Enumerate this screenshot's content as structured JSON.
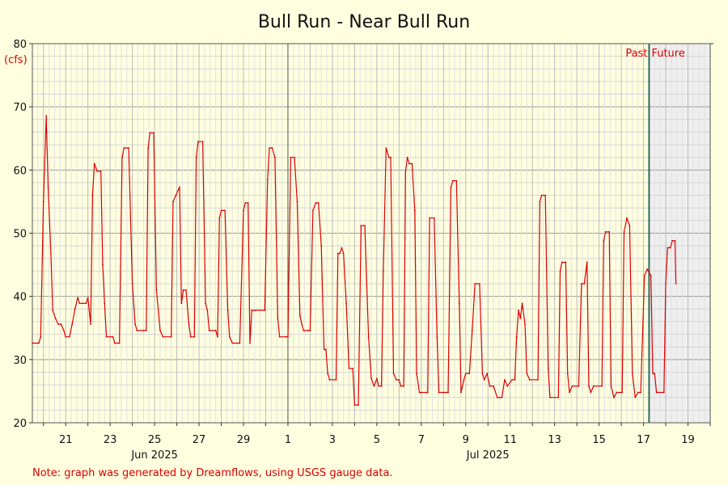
{
  "chart_data": {
    "type": "line",
    "title": "Bull Run - Near Bull Run",
    "y_unit": "(cfs)",
    "ylim": [
      20,
      80
    ],
    "y_ticks": [
      20,
      30,
      40,
      50,
      60,
      70,
      80
    ],
    "x_range": [
      "2025-06-19T12:00",
      "2025-07-20T00:00"
    ],
    "x_tick_labels": [
      {
        "date": "2025-06-21",
        "label": "21"
      },
      {
        "date": "2025-06-23",
        "label": "23"
      },
      {
        "date": "2025-06-25",
        "label": "25"
      },
      {
        "date": "2025-06-27",
        "label": "27"
      },
      {
        "date": "2025-06-29",
        "label": "29"
      },
      {
        "date": "2025-07-01",
        "label": "1"
      },
      {
        "date": "2025-07-03",
        "label": "3"
      },
      {
        "date": "2025-07-05",
        "label": "5"
      },
      {
        "date": "2025-07-07",
        "label": "7"
      },
      {
        "date": "2025-07-09",
        "label": "9"
      },
      {
        "date": "2025-07-11",
        "label": "11"
      },
      {
        "date": "2025-07-13",
        "label": "13"
      },
      {
        "date": "2025-07-15",
        "label": "15"
      },
      {
        "date": "2025-07-17",
        "label": "17"
      },
      {
        "date": "2025-07-19",
        "label": "19"
      }
    ],
    "month_labels": [
      {
        "date": "2025-06-25",
        "label": "Jun 2025"
      },
      {
        "date": "2025-07-10",
        "label": "Jul 2025"
      }
    ],
    "month_boundaries": [
      "2025-07-01"
    ],
    "now": "2025-07-17T06:00",
    "past_label": "Past",
    "future_label": "Future",
    "note": "Note: graph was generated by Dreamflows, using USGS gauge data.",
    "grid": true,
    "line_color": "#dd0000",
    "series": [
      {
        "values": [
          [
            "2025-06-19T12:00",
            32.6
          ],
          [
            "2025-06-19T19:00",
            32.6
          ],
          [
            "2025-06-19T21:00",
            33.6
          ],
          [
            "2025-06-20T00:00",
            55
          ],
          [
            "2025-06-20T03:00",
            68.6
          ],
          [
            "2025-06-20T05:00",
            57.3
          ],
          [
            "2025-06-20T08:00",
            46.8
          ],
          [
            "2025-06-20T10:00",
            37.8
          ],
          [
            "2025-06-20T13:00",
            36.5
          ],
          [
            "2025-06-20T16:00",
            35.6
          ],
          [
            "2025-06-20T19:00",
            35.6
          ],
          [
            "2025-06-20T22:00",
            34.6
          ],
          [
            "2025-06-21T00:00",
            33.6
          ],
          [
            "2025-06-21T04:00",
            33.6
          ],
          [
            "2025-06-21T07:00",
            35.6
          ],
          [
            "2025-06-21T10:00",
            38
          ],
          [
            "2025-06-21T13:00",
            39.8
          ],
          [
            "2025-06-21T15:00",
            38.9
          ],
          [
            "2025-06-21T19:00",
            38.9
          ],
          [
            "2025-06-21T22:00",
            38.9
          ],
          [
            "2025-06-22T00:00",
            39.8
          ],
          [
            "2025-06-22T03:00",
            35.6
          ],
          [
            "2025-06-22T05:00",
            56
          ],
          [
            "2025-06-22T07:00",
            61
          ],
          [
            "2025-06-22T10:00",
            59.8
          ],
          [
            "2025-06-22T14:00",
            59.8
          ],
          [
            "2025-06-22T16:00",
            45
          ],
          [
            "2025-06-22T18:00",
            38.9
          ],
          [
            "2025-06-22T20:00",
            33.6
          ],
          [
            "2025-06-23T00:00",
            33.6
          ],
          [
            "2025-06-23T03:00",
            33.6
          ],
          [
            "2025-06-23T05:00",
            32.6
          ],
          [
            "2025-06-23T10:00",
            32.6
          ],
          [
            "2025-06-23T13:00",
            62
          ],
          [
            "2025-06-23T15:00",
            63.5
          ],
          [
            "2025-06-23T20:00",
            63.5
          ],
          [
            "2025-06-24T00:00",
            42
          ],
          [
            "2025-06-24T03:00",
            35.6
          ],
          [
            "2025-06-24T05:00",
            34.6
          ],
          [
            "2025-06-24T12:00",
            34.6
          ],
          [
            "2025-06-24T15:00",
            34.6
          ],
          [
            "2025-06-24T17:00",
            63.5
          ],
          [
            "2025-06-24T19:00",
            65.9
          ],
          [
            "2025-06-24T23:00",
            65.9
          ],
          [
            "2025-06-25T02:00",
            41
          ],
          [
            "2025-06-25T06:00",
            34.6
          ],
          [
            "2025-06-25T09:00",
            33.6
          ],
          [
            "2025-06-25T18:00",
            33.6
          ],
          [
            "2025-06-25T20:00",
            55
          ],
          [
            "2025-06-25T23:00",
            56
          ],
          [
            "2025-06-26T03:00",
            57.3
          ],
          [
            "2025-06-26T05:00",
            38.9
          ],
          [
            "2025-06-26T07:00",
            41
          ],
          [
            "2025-06-26T10:00",
            41
          ],
          [
            "2025-06-26T13:00",
            35.6
          ],
          [
            "2025-06-26T15:00",
            33.6
          ],
          [
            "2025-06-26T19:00",
            33.6
          ],
          [
            "2025-06-26T21:00",
            62
          ],
          [
            "2025-06-26T23:00",
            64.5
          ],
          [
            "2025-06-27T04:00",
            64.5
          ],
          [
            "2025-06-27T07:00",
            38.9
          ],
          [
            "2025-06-27T09:00",
            37.8
          ],
          [
            "2025-06-27T11:00",
            34.6
          ],
          [
            "2025-06-27T18:00",
            34.6
          ],
          [
            "2025-06-27T20:00",
            33.6
          ],
          [
            "2025-06-27T22:00",
            52.4
          ],
          [
            "2025-06-28T00:00",
            53.6
          ],
          [
            "2025-06-28T04:00",
            53.6
          ],
          [
            "2025-06-28T07:00",
            37.8
          ],
          [
            "2025-06-28T09:00",
            33.6
          ],
          [
            "2025-06-28T12:00",
            32.6
          ],
          [
            "2025-06-28T20:00",
            32.6
          ],
          [
            "2025-06-29T00:00",
            53.6
          ],
          [
            "2025-06-29T02:00",
            54.8
          ],
          [
            "2025-06-29T05:00",
            54.8
          ],
          [
            "2025-06-29T07:00",
            32.6
          ],
          [
            "2025-06-29T09:00",
            37.8
          ],
          [
            "2025-06-29T12:00",
            37.8
          ],
          [
            "2025-06-29T20:00",
            37.8
          ],
          [
            "2025-06-29T23:00",
            37.8
          ],
          [
            "2025-06-30T02:00",
            58.5
          ],
          [
            "2025-06-30T04:00",
            63.5
          ],
          [
            "2025-06-30T07:00",
            63.5
          ],
          [
            "2025-06-30T10:00",
            62
          ],
          [
            "2025-06-30T13:00",
            36.5
          ],
          [
            "2025-06-30T15:00",
            33.6
          ],
          [
            "2025-06-30T22:00",
            33.6
          ],
          [
            "2025-07-01T00:00",
            33.6
          ],
          [
            "2025-07-01T03:00",
            62
          ],
          [
            "2025-07-01T07:00",
            62
          ],
          [
            "2025-07-01T10:00",
            55
          ],
          [
            "2025-07-01T13:00",
            37
          ],
          [
            "2025-07-01T15:00",
            35.6
          ],
          [
            "2025-07-01T17:00",
            34.6
          ],
          [
            "2025-07-01T22:00",
            34.6
          ],
          [
            "2025-07-02T00:00",
            34.6
          ],
          [
            "2025-07-02T03:00",
            53.6
          ],
          [
            "2025-07-02T06:00",
            54.8
          ],
          [
            "2025-07-02T09:00",
            54.8
          ],
          [
            "2025-07-02T12:00",
            48
          ],
          [
            "2025-07-02T15:00",
            31.6
          ],
          [
            "2025-07-02T17:00",
            31.6
          ],
          [
            "2025-07-02T19:00",
            27.8
          ],
          [
            "2025-07-02T21:00",
            26.8
          ],
          [
            "2025-07-03T04:00",
            26.8
          ],
          [
            "2025-07-03T06:00",
            46.8
          ],
          [
            "2025-07-03T08:00",
            46.8
          ],
          [
            "2025-07-03T10:00",
            47.7
          ],
          [
            "2025-07-03T12:00",
            46.8
          ],
          [
            "2025-07-03T15:00",
            38.9
          ],
          [
            "2025-07-03T18:00",
            28.6
          ],
          [
            "2025-07-03T22:00",
            28.6
          ],
          [
            "2025-07-04T00:00",
            22.8
          ],
          [
            "2025-07-04T04:00",
            22.8
          ],
          [
            "2025-07-04T07:00",
            51.2
          ],
          [
            "2025-07-04T11:00",
            51.2
          ],
          [
            "2025-07-04T15:00",
            33.6
          ],
          [
            "2025-07-04T18:00",
            27
          ],
          [
            "2025-07-04T21:00",
            25.8
          ],
          [
            "2025-07-05T00:00",
            27
          ],
          [
            "2025-07-05T02:00",
            25.8
          ],
          [
            "2025-07-05T05:00",
            25.8
          ],
          [
            "2025-07-05T07:00",
            44
          ],
          [
            "2025-07-05T10:00",
            63.5
          ],
          [
            "2025-07-05T13:00",
            62
          ],
          [
            "2025-07-05T15:00",
            62
          ],
          [
            "2025-07-05T18:00",
            27.8
          ],
          [
            "2025-07-05T21:00",
            26.8
          ],
          [
            "2025-07-06T00:00",
            26.8
          ],
          [
            "2025-07-06T02:00",
            25.8
          ],
          [
            "2025-07-06T05:00",
            25.8
          ],
          [
            "2025-07-06T07:00",
            59.8
          ],
          [
            "2025-07-06T09:00",
            62
          ],
          [
            "2025-07-06T11:00",
            61
          ],
          [
            "2025-07-06T14:00",
            61
          ],
          [
            "2025-07-06T17:00",
            53.6
          ],
          [
            "2025-07-06T19:00",
            27.8
          ],
          [
            "2025-07-06T22:00",
            24.8
          ],
          [
            "2025-07-07T07:00",
            24.8
          ],
          [
            "2025-07-07T09:00",
            52.4
          ],
          [
            "2025-07-07T14:00",
            52.4
          ],
          [
            "2025-07-07T17:00",
            33.6
          ],
          [
            "2025-07-07T19:00",
            24.8
          ],
          [
            "2025-07-08T02:00",
            24.8
          ],
          [
            "2025-07-08T05:00",
            24.8
          ],
          [
            "2025-07-08T08:00",
            57.3
          ],
          [
            "2025-07-08T10:00",
            58.3
          ],
          [
            "2025-07-08T14:00",
            58.3
          ],
          [
            "2025-07-08T17:00",
            38.9
          ],
          [
            "2025-07-08T19:00",
            24.8
          ],
          [
            "2025-07-08T22:00",
            26.8
          ],
          [
            "2025-07-09T00:00",
            27.8
          ],
          [
            "2025-07-09T04:00",
            27.8
          ],
          [
            "2025-07-09T07:00",
            34.6
          ],
          [
            "2025-07-09T10:00",
            42
          ],
          [
            "2025-07-09T15:00",
            42
          ],
          [
            "2025-07-09T18:00",
            27.8
          ],
          [
            "2025-07-09T20:00",
            26.8
          ],
          [
            "2025-07-09T23:00",
            27.8
          ],
          [
            "2025-07-10T02:00",
            25.8
          ],
          [
            "2025-07-10T06:00",
            25.8
          ],
          [
            "2025-07-10T10:00",
            24
          ],
          [
            "2025-07-10T13:00",
            24
          ],
          [
            "2025-07-10T15:00",
            24
          ],
          [
            "2025-07-10T18:00",
            26.8
          ],
          [
            "2025-07-10T21:00",
            25.8
          ],
          [
            "2025-07-11T02:00",
            26.8
          ],
          [
            "2025-07-11T05:00",
            26.8
          ],
          [
            "2025-07-11T07:00",
            33.6
          ],
          [
            "2025-07-11T09:00",
            37.8
          ],
          [
            "2025-07-11T11:00",
            36.5
          ],
          [
            "2025-07-11T13:00",
            38.9
          ],
          [
            "2025-07-11T16:00",
            35.6
          ],
          [
            "2025-07-11T18:00",
            27.8
          ],
          [
            "2025-07-11T21:00",
            26.8
          ],
          [
            "2025-07-12T06:00",
            26.8
          ],
          [
            "2025-07-12T08:00",
            55
          ],
          [
            "2025-07-12T10:00",
            56
          ],
          [
            "2025-07-12T14:00",
            56
          ],
          [
            "2025-07-12T17:00",
            28.6
          ],
          [
            "2025-07-12T19:00",
            24
          ],
          [
            "2025-07-13T04:00",
            24
          ],
          [
            "2025-07-13T06:00",
            44
          ],
          [
            "2025-07-13T08:00",
            45.4
          ],
          [
            "2025-07-13T12:00",
            45.4
          ],
          [
            "2025-07-13T14:00",
            27.8
          ],
          [
            "2025-07-13T16:00",
            24.8
          ],
          [
            "2025-07-13T19:00",
            25.8
          ],
          [
            "2025-07-14T02:00",
            25.8
          ],
          [
            "2025-07-14T05:00",
            42
          ],
          [
            "2025-07-14T08:00",
            42
          ],
          [
            "2025-07-14T11:00",
            45.4
          ],
          [
            "2025-07-14T13:00",
            25.8
          ],
          [
            "2025-07-14T15:00",
            24.8
          ],
          [
            "2025-07-14T18:00",
            25.8
          ],
          [
            "2025-07-15T03:00",
            25.8
          ],
          [
            "2025-07-15T05:00",
            48.8
          ],
          [
            "2025-07-15T07:00",
            50.2
          ],
          [
            "2025-07-15T11:00",
            50.2
          ],
          [
            "2025-07-15T13:00",
            25.8
          ],
          [
            "2025-07-15T16:00",
            24
          ],
          [
            "2025-07-15T19:00",
            24.8
          ],
          [
            "2025-07-16T01:00",
            24.8
          ],
          [
            "2025-07-16T03:00",
            50.2
          ],
          [
            "2025-07-16T06:00",
            52.4
          ],
          [
            "2025-07-16T09:00",
            51.2
          ],
          [
            "2025-07-16T12:00",
            27.8
          ],
          [
            "2025-07-16T15:00",
            24
          ],
          [
            "2025-07-16T18:00",
            24.8
          ],
          [
            "2025-07-16T21:00",
            24.8
          ],
          [
            "2025-07-17T01:00",
            43.3
          ],
          [
            "2025-07-17T04:00",
            44.3
          ],
          [
            "2025-07-17T08:00",
            43.3
          ],
          [
            "2025-07-17T10:00",
            27.8
          ],
          [
            "2025-07-17T12:00",
            27.8
          ],
          [
            "2025-07-17T14:00",
            24.8
          ],
          [
            "2025-07-17T22:00",
            24.8
          ],
          [
            "2025-07-18T00:00",
            42
          ],
          [
            "2025-07-18T02:00",
            47.7
          ],
          [
            "2025-07-18T05:00",
            47.7
          ],
          [
            "2025-07-18T07:00",
            48.8
          ],
          [
            "2025-07-18T10:00",
            48.8
          ],
          [
            "2025-07-18T11:00",
            42
          ]
        ]
      }
    ]
  }
}
